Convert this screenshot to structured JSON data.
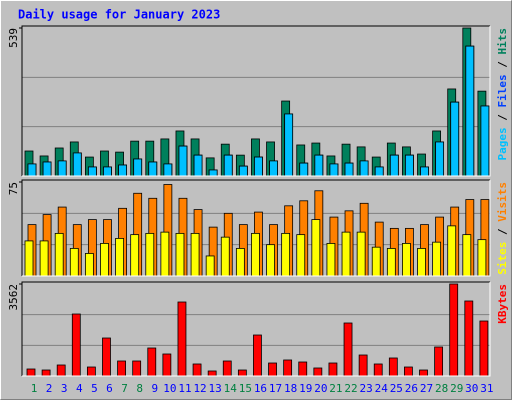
{
  "chart_data": [
    {
      "type": "bar",
      "title": "Daily usage for January 2023",
      "ylim": [
        0,
        539
      ],
      "yticks": [
        539
      ],
      "legend_separator": " / ",
      "series": [
        {
          "name": "Hits",
          "color": "#00805c",
          "values": [
            91,
            73,
            102,
            124,
            69,
            91,
            87,
            127,
            127,
            135,
            164,
            135,
            66,
            116,
            76,
            135,
            124,
            273,
            113,
            120,
            73,
            116,
            106,
            69,
            120,
            106,
            80,
            164,
            317,
            539,
            309
          ]
        },
        {
          "name": "Files",
          "color": "#0040ff",
          "values": [
            44,
            51,
            55,
            84,
            33,
            33,
            40,
            62,
            51,
            44,
            109,
            76,
            22,
            76,
            36,
            69,
            55,
            226,
            47,
            76,
            44,
            47,
            55,
            33,
            76,
            76,
            33,
            124,
            269,
            473,
            255
          ]
        },
        {
          "name": "Pages",
          "color": "#00c0ff",
          "values": [
            44,
            51,
            55,
            84,
            33,
            33,
            40,
            62,
            51,
            44,
            109,
            76,
            22,
            76,
            36,
            69,
            55,
            226,
            47,
            76,
            44,
            47,
            55,
            33,
            76,
            76,
            33,
            124,
            269,
            473,
            255
          ]
        }
      ]
    },
    {
      "type": "bar",
      "ylim": [
        0,
        75
      ],
      "yticks": [
        75
      ],
      "legend_separator": " / ",
      "series": [
        {
          "name": "Visits",
          "color": "#ff8000",
          "values": [
            41,
            49,
            55,
            41,
            45,
            45,
            54,
            66,
            62,
            73,
            62,
            53,
            39,
            50,
            41,
            51,
            41,
            56,
            60,
            68,
            47,
            52,
            58,
            43,
            38,
            38,
            41,
            47,
            55,
            61,
            61
          ]
        },
        {
          "name": "Sites",
          "color": "#ffff00",
          "values": [
            28,
            28,
            34,
            22,
            18,
            26,
            30,
            33,
            34,
            35,
            34,
            34,
            16,
            31,
            22,
            34,
            25,
            34,
            33,
            45,
            26,
            35,
            35,
            23,
            22,
            26,
            22,
            27,
            40,
            33,
            29
          ]
        }
      ]
    },
    {
      "type": "bar",
      "ylim": [
        0,
        3562
      ],
      "yticks": [
        3562
      ],
      "categories": [
        "1",
        "2",
        "3",
        "4",
        "5",
        "6",
        "7",
        "8",
        "9",
        "10",
        "11",
        "12",
        "13",
        "14",
        "15",
        "16",
        "17",
        "18",
        "19",
        "20",
        "21",
        "22",
        "23",
        "24",
        "25",
        "26",
        "27",
        "28",
        "29",
        "30",
        "31"
      ],
      "category_colors": [
        "#008040",
        "#0000ff",
        "#0000ff",
        "#0000ff",
        "#0000ff",
        "#0000ff",
        "#008040",
        "#008040",
        "#0000ff",
        "#0000ff",
        "#0000ff",
        "#0000ff",
        "#0000ff",
        "#008040",
        "#008040",
        "#0000ff",
        "#0000ff",
        "#0000ff",
        "#0000ff",
        "#0000ff",
        "#008040",
        "#008040",
        "#0000ff",
        "#0000ff",
        "#0000ff",
        "#0000ff",
        "#0000ff",
        "#008040",
        "#008040",
        "#0000ff",
        "#0000ff"
      ],
      "series": [
        {
          "name": "KBytes",
          "color": "#ff0000",
          "values": [
            271,
            232,
            426,
            2400,
            348,
            1471,
            581,
            581,
            1084,
            852,
            2865,
            465,
            194,
            581,
            232,
            1587,
            503,
            620,
            542,
            310,
            503,
            2052,
            813,
            465,
            697,
            348,
            232,
            1123,
            3562,
            2904,
            2129
          ]
        }
      ]
    }
  ]
}
